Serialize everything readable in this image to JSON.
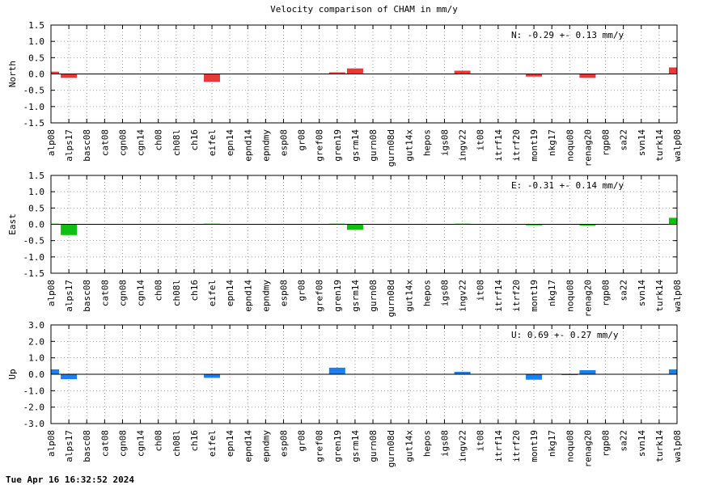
{
  "title": "Velocity comparison of CHAM in mm/y",
  "timestamp": "Tue Apr 16 16:32:52 2024",
  "colors": {
    "north": "#e8383a",
    "east": "#10c010",
    "up": "#1a80f0"
  },
  "chart_data": [
    {
      "type": "bar",
      "ylabel": "North",
      "ylim": [
        -1.5,
        1.5
      ],
      "yticks": [
        "1.5",
        "1.0",
        "0.5",
        "0.0",
        "-0.5",
        "-1.0",
        "-1.5"
      ],
      "grid": true,
      "annotation": "N:  -0.29 +-  0.13 mm/y",
      "categories": [
        "alp08",
        "alps17",
        "basc08",
        "cat08",
        "cgn08",
        "cgn14",
        "ch08",
        "ch08l",
        "ch16",
        "eifel",
        "epn14",
        "epnd14",
        "epndmy",
        "esp08",
        "gr08",
        "gref08",
        "gren19",
        "gsrm14",
        "gurn08",
        "gurn08d",
        "gut14x",
        "hepos",
        "igs08",
        "ingv22",
        "it08",
        "itrf14",
        "itrf20",
        "mont19",
        "nkg17",
        "noqu08",
        "renag20",
        "rgp08",
        "sa22",
        "svn14",
        "turk14",
        "walp08"
      ],
      "values": [
        0.07,
        -0.12,
        0,
        0,
        0,
        0,
        0,
        0,
        0,
        -0.24,
        0,
        0,
        0,
        0,
        0,
        0,
        0.05,
        0.17,
        0,
        0,
        0,
        0,
        0,
        0.1,
        0,
        0,
        0,
        -0.08,
        0,
        0,
        -0.12,
        0,
        0,
        0,
        0,
        0.2
      ]
    },
    {
      "type": "bar",
      "ylabel": "East",
      "ylim": [
        -1.5,
        1.5
      ],
      "yticks": [
        "1.5",
        "1.0",
        "0.5",
        "0.0",
        "-0.5",
        "-1.0",
        "-1.5"
      ],
      "grid": true,
      "annotation": "E:  -0.31 +-  0.14 mm/y",
      "categories": [
        "alp08",
        "alps17",
        "basc08",
        "cat08",
        "cgn08",
        "cgn14",
        "ch08",
        "ch08l",
        "ch16",
        "eifel",
        "epn14",
        "epnd14",
        "epndmy",
        "esp08",
        "gr08",
        "gref08",
        "gren19",
        "gsrm14",
        "gurn08",
        "gurn08d",
        "gut14x",
        "hepos",
        "igs08",
        "ingv22",
        "it08",
        "itrf14",
        "itrf20",
        "mont19",
        "nkg17",
        "noqu08",
        "renag20",
        "rgp08",
        "sa22",
        "svn14",
        "turk14",
        "walp08"
      ],
      "values": [
        0.02,
        -0.33,
        0,
        0,
        0,
        0,
        0,
        0,
        0,
        0.02,
        0,
        0,
        0,
        0,
        0,
        0,
        0.02,
        -0.17,
        0,
        0,
        0,
        0,
        0,
        0.02,
        0,
        0,
        0,
        -0.03,
        0,
        0,
        -0.04,
        0,
        0,
        0,
        0,
        0.2
      ]
    },
    {
      "type": "bar",
      "ylabel": "Up",
      "ylim": [
        -3.0,
        3.0
      ],
      "yticks": [
        "3.0",
        "2.0",
        "1.0",
        "0.0",
        "-1.0",
        "-2.0",
        "-3.0"
      ],
      "grid": true,
      "annotation": "U:   0.69 +-  0.27 mm/y",
      "categories": [
        "alp08",
        "alps17",
        "basc08",
        "cat08",
        "cgn08",
        "cgn14",
        "ch08",
        "ch08l",
        "ch16",
        "eifel",
        "epn14",
        "epnd14",
        "epndmy",
        "esp08",
        "gr08",
        "gref08",
        "gren19",
        "gsrm14",
        "gurn08",
        "gurn08d",
        "gut14x",
        "hepos",
        "igs08",
        "ingv22",
        "it08",
        "itrf14",
        "itrf20",
        "mont19",
        "nkg17",
        "noqu08",
        "renag20",
        "rgp08",
        "sa22",
        "svn14",
        "turk14",
        "walp08"
      ],
      "values": [
        0.3,
        -0.3,
        0,
        0,
        0,
        0,
        0,
        0,
        0,
        -0.22,
        0,
        0,
        0,
        0,
        0,
        0,
        0.4,
        0,
        0,
        0,
        0,
        0,
        0,
        0.15,
        0,
        0,
        0,
        -0.33,
        0,
        -0.05,
        0.25,
        0,
        0,
        0,
        0,
        0.3
      ]
    }
  ]
}
